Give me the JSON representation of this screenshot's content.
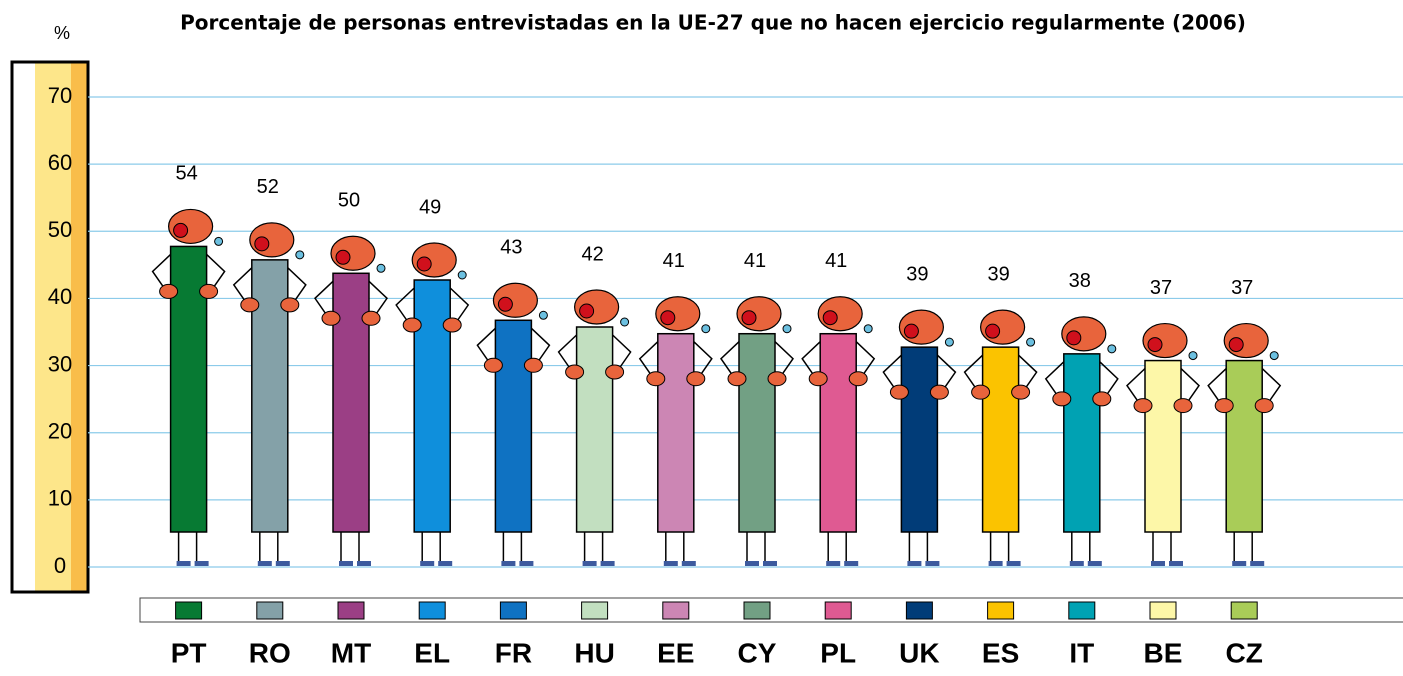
{
  "chart_data": {
    "type": "bar",
    "title": "Porcentaje de personas entrevistadas en la UE-27 que no hacen ejercicio regularmente (2006)",
    "y_unit": "%",
    "categories": [
      "PT",
      "RO",
      "MT",
      "EL",
      "FR",
      "HU",
      "EE",
      "CY",
      "PL",
      "UK",
      "ES",
      "IT",
      "BE",
      "CZ"
    ],
    "values": [
      54,
      52,
      50,
      49,
      43,
      42,
      41,
      41,
      41,
      39,
      39,
      38,
      37,
      37
    ],
    "colors": [
      "#077a33",
      "#84a1a8",
      "#9b3f85",
      "#0f8fdc",
      "#0f72c2",
      "#c2dfc0",
      "#cc86b4",
      "#72a084",
      "#df5a92",
      "#013c78",
      "#fbc300",
      "#00a2b3",
      "#fdf7a8",
      "#a9cc58"
    ],
    "ylim": [
      0,
      70
    ],
    "yticks": [
      0,
      10,
      20,
      30,
      40,
      50,
      60,
      70
    ],
    "grid": true
  }
}
